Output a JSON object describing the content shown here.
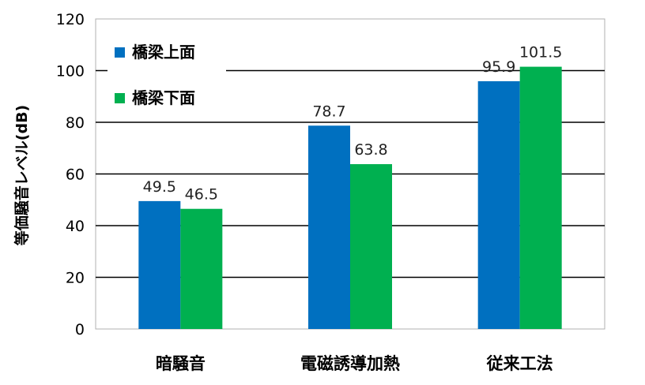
{
  "chart_data": {
    "type": "bar",
    "categories": [
      "暗騒音",
      "電磁誘導加熱",
      "従来工法"
    ],
    "series": [
      {
        "name": "橋梁上面",
        "values": [
          49.5,
          78.7,
          95.9
        ],
        "color": "#0070C0"
      },
      {
        "name": "橋梁下面",
        "values": [
          46.5,
          63.8,
          101.5
        ],
        "color": "#00B050"
      }
    ],
    "data_labels": [
      [
        "49.5",
        "78.7",
        "95.9"
      ],
      [
        "46.5",
        "63.8",
        "101.5"
      ]
    ],
    "ylabel": "等価騒音レベル(dB)",
    "xlabel": "",
    "ylim": [
      0,
      120
    ],
    "yticks": [
      0,
      20,
      40,
      60,
      80,
      100,
      120
    ],
    "grid": true,
    "legend_position": "top-left"
  }
}
